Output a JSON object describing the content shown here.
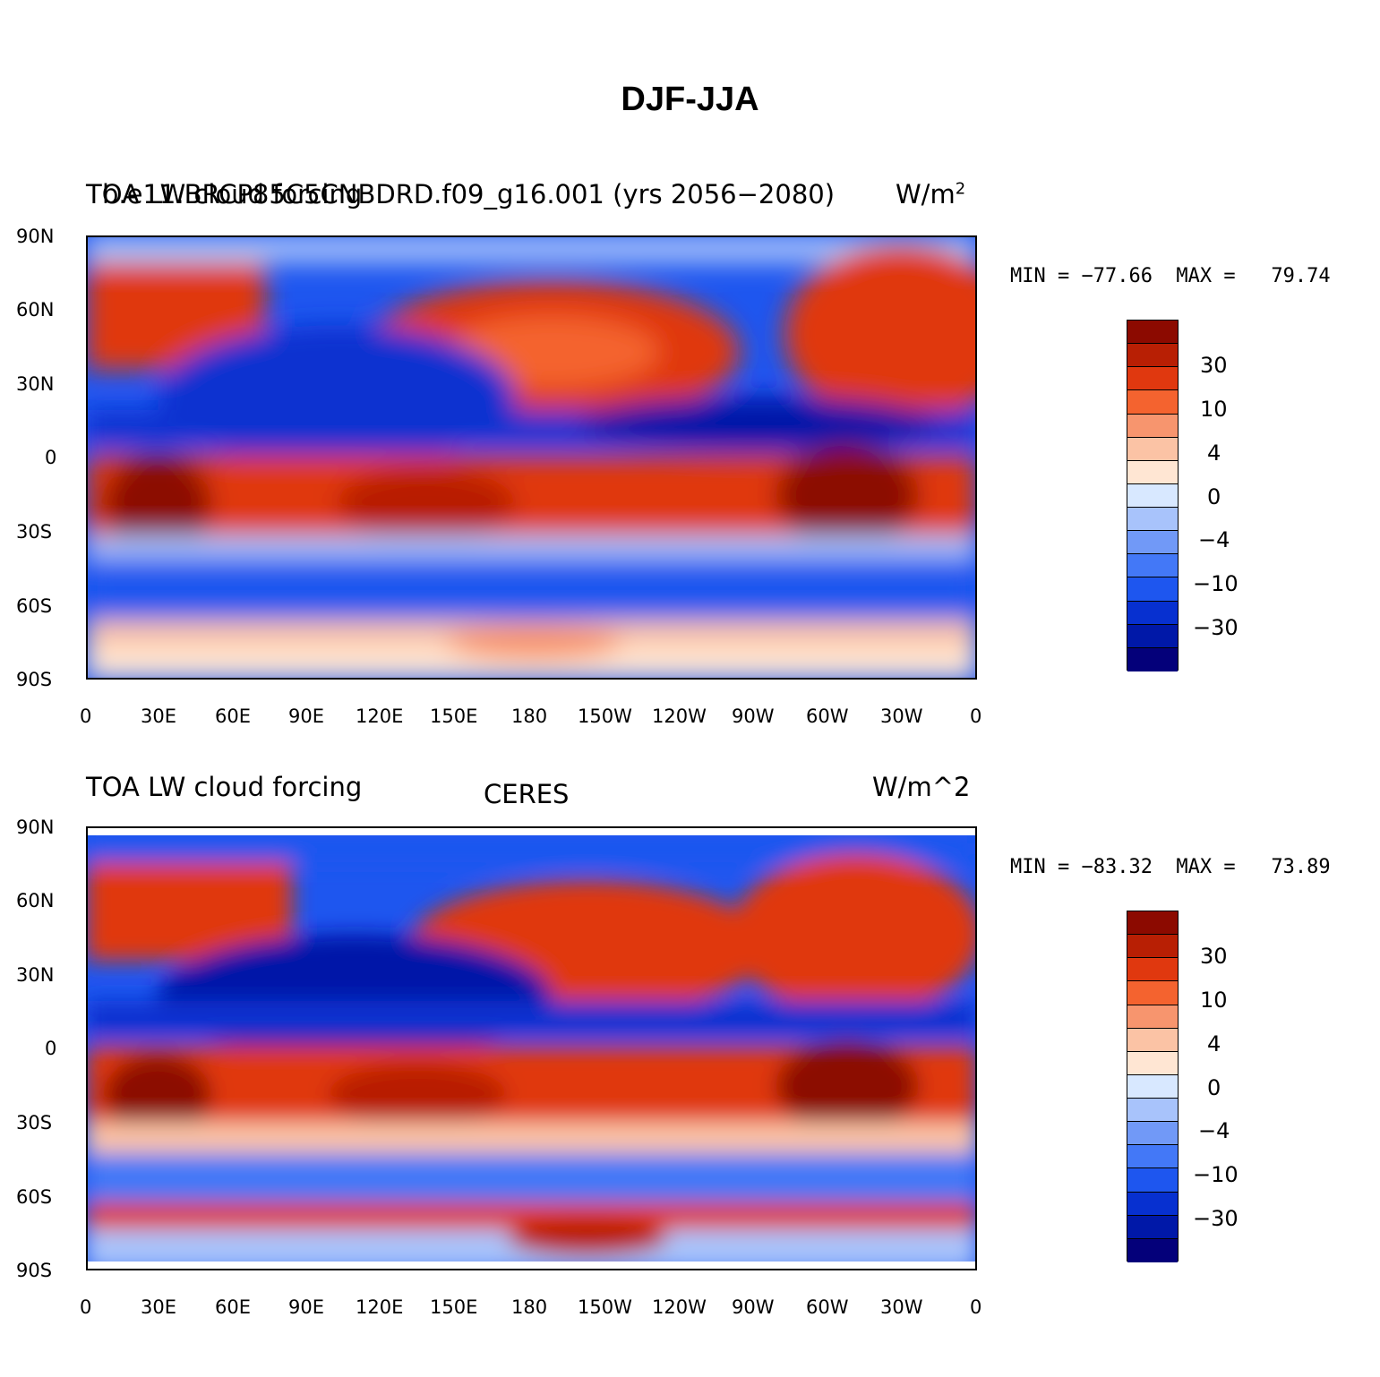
{
  "title": "DJF-JJA",
  "palette": [
    "#04007a",
    "#0018a8",
    "#0730d0",
    "#1e56ef",
    "#4378f7",
    "#7199f7",
    "#a8c3fb",
    "#d8e8ff",
    "#ffe6d3",
    "#fbc3a5",
    "#f7956e",
    "#f4632f",
    "#e0380f",
    "#b81f04",
    "#8c0a00"
  ],
  "colorbar_labels": [
    "30",
    "10",
    "4",
    "0",
    "−4",
    "−10",
    "−30"
  ],
  "lat_labels": [
    "90N",
    "60N",
    "30N",
    "0",
    "30S",
    "60S",
    "90S"
  ],
  "lon_labels": [
    "0",
    "30E",
    "60E",
    "90E",
    "120E",
    "150E",
    "180",
    "150W",
    "120W",
    "90W",
    "60W",
    "30W",
    "0"
  ],
  "panels": [
    {
      "id": "model",
      "left_title": "TOA LW cloud forcing",
      "center_title": "b.e11.BRCP85C5CNBDRD.f09_g16.001 (yrs 2056−2080)",
      "right_title": "W/m",
      "right_title_sup": "2",
      "min_max_text": "MIN = −77.66  MAX =   79.74"
    },
    {
      "id": "obs",
      "left_title": "TOA LW cloud forcing",
      "center_title": "CERES",
      "right_title": "W/m^2",
      "right_title_sup": "",
      "min_max_text": "MIN = −83.32  MAX =   73.89"
    }
  ]
}
